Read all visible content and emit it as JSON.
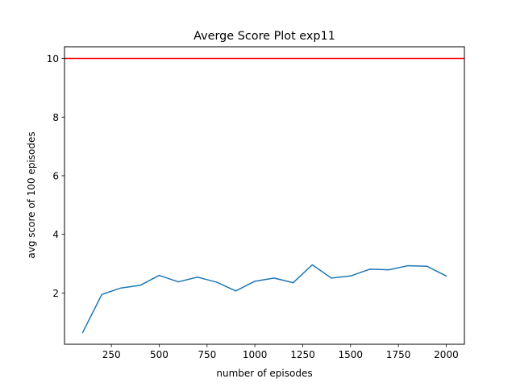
{
  "chart_data": {
    "type": "line",
    "title": "Averge Score Plot exp11",
    "xlabel": "number of episodes",
    "ylabel": "avg score of 100 episodes",
    "xlim": [
      5,
      2095
    ],
    "ylim": [
      0.25,
      10.4
    ],
    "xticks": [
      250,
      500,
      750,
      1000,
      1250,
      1500,
      1750,
      2000
    ],
    "xtick_labels": [
      "250",
      "500",
      "750",
      "1000",
      "1250",
      "1500",
      "1750",
      "2000"
    ],
    "yticks": [
      2,
      4,
      6,
      8,
      10
    ],
    "ytick_labels": [
      "2",
      "4",
      "6",
      "8",
      "10"
    ],
    "grid": false,
    "series": [
      {
        "color": "#1f77b4",
        "x": [
          100,
          200,
          300,
          400,
          500,
          600,
          700,
          800,
          900,
          1000,
          1100,
          1200,
          1300,
          1400,
          1500,
          1600,
          1700,
          1800,
          1900,
          2000
        ],
        "y": [
          0.65,
          1.95,
          2.17,
          2.26,
          2.6,
          2.38,
          2.54,
          2.37,
          2.07,
          2.4,
          2.51,
          2.35,
          2.96,
          2.51,
          2.58,
          2.81,
          2.79,
          2.93,
          2.91,
          2.58
        ]
      }
    ],
    "reference_lines": [
      {
        "orientation": "horizontal",
        "y": 10,
        "color": "#ff0000"
      }
    ]
  }
}
